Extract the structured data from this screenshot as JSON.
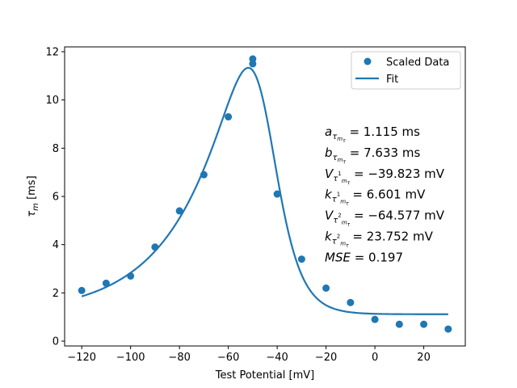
{
  "chart_data": {
    "type": "scatter",
    "xlabel": "Test Potential [mV]",
    "ylabel": "τ_m [ms]",
    "xlim": [
      -127,
      37
    ],
    "ylim": [
      -0.2,
      12.2
    ],
    "xticks": [
      -120,
      -100,
      -80,
      -60,
      -40,
      -20,
      0,
      20
    ],
    "xtick_labels": [
      "−120",
      "−100",
      "−80",
      "−60",
      "−40",
      "−20",
      "0",
      "20"
    ],
    "yticks": [
      0,
      2,
      4,
      6,
      8,
      10,
      12
    ],
    "ytick_labels": [
      "0",
      "2",
      "4",
      "6",
      "8",
      "10",
      "12"
    ],
    "grid": false,
    "legend_position": "top-right",
    "series": [
      {
        "name": "Scaled Data",
        "kind": "scatter",
        "color": "#1f77b4",
        "x": [
          -120,
          -110,
          -100,
          -90,
          -80,
          -70,
          -60,
          -50,
          -50,
          -40,
          -30,
          -20,
          -10,
          0,
          10,
          20,
          30
        ],
        "y": [
          2.1,
          2.4,
          2.7,
          3.9,
          5.4,
          6.9,
          9.3,
          11.5,
          11.7,
          6.1,
          3.4,
          2.2,
          1.6,
          0.9,
          0.7,
          0.7,
          0.5
        ]
      },
      {
        "name": "Fit",
        "kind": "line",
        "color": "#1f77b4",
        "model": "a + b / (exp((V - V1)/k1) + exp(-(V - V2)/k2))",
        "x_range": [
          -120,
          30
        ],
        "params": {
          "a": 1.115,
          "b": 7.633,
          "V1": -39.823,
          "k1": 6.601,
          "V2": -64.577,
          "k2": 23.752
        }
      }
    ],
    "annotations": [
      {
        "sym": "a",
        "sub": "τ",
        "subsub": "m",
        "subsub2": "τ",
        "sup": "",
        "rest": " = 1.115 ms"
      },
      {
        "sym": "b",
        "sub": "τ",
        "subsub": "m",
        "subsub2": "τ",
        "sup": "",
        "rest": " = 7.633 ms"
      },
      {
        "sym": "V",
        "sub": "τ",
        "subsub": "m",
        "subsub2": "τ",
        "sup": "1",
        "rest": " = −39.823 mV"
      },
      {
        "sym": "k",
        "sub": "τ",
        "subsub": "m",
        "subsub2": "τ",
        "sup": "1",
        "rest": " = 6.601 mV"
      },
      {
        "sym": "V",
        "sub": "τ",
        "subsub": "m",
        "subsub2": "τ",
        "sup": "2",
        "rest": " = −64.577 mV"
      },
      {
        "sym": "k",
        "sub": "τ",
        "subsub": "m",
        "subsub2": "τ",
        "sup": "2",
        "rest": " = 23.752 mV"
      },
      {
        "sym": "MSE",
        "sub": "",
        "subsub": "",
        "subsub2": "",
        "sup": "",
        "rest": " = 0.197"
      }
    ]
  }
}
